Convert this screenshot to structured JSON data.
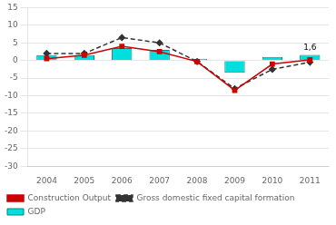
{
  "chart_data": {
    "type": "bar",
    "categories": [
      "2004",
      "2005",
      "2006",
      "2007",
      "2008",
      "2009",
      "2010",
      "2011"
    ],
    "series": [
      {
        "name": "GDP",
        "type": "bar",
        "color": "#00DEDE",
        "values": [
          1.5,
          1.5,
          3.5,
          3.0,
          0.5,
          -3.5,
          1.0,
          1.6
        ]
      },
      {
        "name": "Construction Output",
        "type": "line",
        "color": "#CC0000",
        "marker": "square",
        "line_style": "solid",
        "values": [
          0.5,
          1.5,
          4.0,
          2.5,
          -0.3,
          -8.5,
          -1.0,
          0.2
        ]
      },
      {
        "name": "Gross domestic fixed capital formation",
        "type": "line",
        "color": "#333333",
        "marker": "diamond",
        "line_style": "dashed",
        "values": [
          2.0,
          2.0,
          6.5,
          5.0,
          -0.3,
          -8.0,
          -2.5,
          -0.5
        ]
      }
    ],
    "annotation": {
      "text": "1,6",
      "category": "2011",
      "value": 1.6
    },
    "ylim": [
      -30,
      15
    ],
    "yticks": [
      15,
      10,
      5,
      0,
      -5,
      -10,
      -15,
      -20,
      -25,
      -30
    ],
    "grid": "y",
    "legend": "lower left"
  }
}
